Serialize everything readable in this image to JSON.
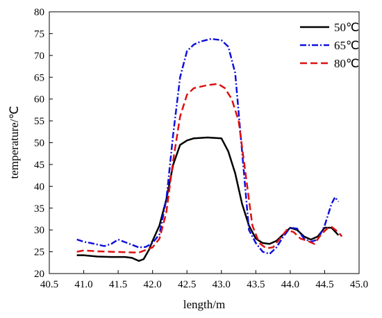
{
  "chart_data": {
    "type": "line",
    "xlabel": "length/m",
    "ylabel": "temperature/℃",
    "xlim": [
      40.5,
      45.0
    ],
    "ylim": [
      20,
      80
    ],
    "xticks": [
      "40.5",
      "41.0",
      "41.5",
      "42.0",
      "42.5",
      "43.0",
      "43.5",
      "44.0",
      "44.5",
      "45.0"
    ],
    "yticks": [
      "20",
      "25",
      "30",
      "35",
      "40",
      "45",
      "50",
      "55",
      "60",
      "65",
      "70",
      "75",
      "80"
    ],
    "legend_position": "top-right",
    "grid": false,
    "series": [
      {
        "name": "50℃",
        "color": "#000000",
        "dash": "solid",
        "points": [
          [
            40.9,
            24.2
          ],
          [
            41.0,
            24.2
          ],
          [
            41.2,
            23.9
          ],
          [
            41.4,
            23.8
          ],
          [
            41.6,
            23.8
          ],
          [
            41.7,
            23.6
          ],
          [
            41.8,
            22.9
          ],
          [
            41.87,
            23.3
          ],
          [
            41.95,
            25.5
          ],
          [
            42.0,
            27.5
          ],
          [
            42.1,
            31.0
          ],
          [
            42.2,
            37.0
          ],
          [
            42.3,
            45.0
          ],
          [
            42.4,
            49.5
          ],
          [
            42.5,
            50.5
          ],
          [
            42.6,
            51.0
          ],
          [
            42.8,
            51.2
          ],
          [
            43.0,
            51.0
          ],
          [
            43.1,
            48.0
          ],
          [
            43.2,
            43.0
          ],
          [
            43.3,
            36.0
          ],
          [
            43.4,
            31.0
          ],
          [
            43.5,
            28.0
          ],
          [
            43.6,
            27.0
          ],
          [
            43.7,
            26.8
          ],
          [
            43.8,
            27.5
          ],
          [
            43.9,
            29.0
          ],
          [
            44.0,
            30.5
          ],
          [
            44.1,
            30.0
          ],
          [
            44.2,
            28.5
          ],
          [
            44.3,
            27.8
          ],
          [
            44.4,
            28.5
          ],
          [
            44.5,
            30.5
          ],
          [
            44.6,
            30.5
          ],
          [
            44.7,
            28.8
          ]
        ]
      },
      {
        "name": "65℃",
        "color": "#1010dd",
        "dash": "dashdot",
        "points": [
          [
            40.9,
            27.8
          ],
          [
            41.0,
            27.3
          ],
          [
            41.1,
            27.0
          ],
          [
            41.3,
            26.3
          ],
          [
            41.4,
            26.8
          ],
          [
            41.5,
            27.8
          ],
          [
            41.6,
            27.2
          ],
          [
            41.7,
            26.6
          ],
          [
            41.8,
            26.0
          ],
          [
            41.9,
            26.1
          ],
          [
            42.0,
            27.0
          ],
          [
            42.1,
            29.0
          ],
          [
            42.2,
            37.0
          ],
          [
            42.3,
            52.0
          ],
          [
            42.4,
            65.0
          ],
          [
            42.5,
            71.0
          ],
          [
            42.6,
            72.5
          ],
          [
            42.7,
            73.2
          ],
          [
            42.85,
            73.8
          ],
          [
            43.0,
            73.5
          ],
          [
            43.1,
            72.0
          ],
          [
            43.2,
            66.0
          ],
          [
            43.3,
            48.0
          ],
          [
            43.4,
            30.0
          ],
          [
            43.5,
            27.0
          ],
          [
            43.6,
            25.0
          ],
          [
            43.7,
            24.5
          ],
          [
            43.8,
            26.0
          ],
          [
            43.9,
            28.5
          ],
          [
            44.0,
            30.5
          ],
          [
            44.1,
            30.3
          ],
          [
            44.2,
            28.0
          ],
          [
            44.3,
            27.3
          ],
          [
            44.4,
            27.8
          ],
          [
            44.5,
            31.0
          ],
          [
            44.6,
            36.0
          ],
          [
            44.65,
            37.5
          ],
          [
            44.7,
            36.5
          ]
        ]
      },
      {
        "name": "80℃",
        "color": "#dd1010",
        "dash": "dashed",
        "points": [
          [
            40.9,
            25.0
          ],
          [
            41.0,
            25.3
          ],
          [
            41.2,
            25.1
          ],
          [
            41.4,
            25.0
          ],
          [
            41.6,
            24.9
          ],
          [
            41.8,
            24.8
          ],
          [
            42.0,
            26.0
          ],
          [
            42.1,
            28.0
          ],
          [
            42.2,
            34.0
          ],
          [
            42.3,
            46.0
          ],
          [
            42.4,
            56.0
          ],
          [
            42.5,
            61.0
          ],
          [
            42.6,
            62.5
          ],
          [
            42.8,
            63.2
          ],
          [
            42.95,
            63.5
          ],
          [
            43.05,
            62.5
          ],
          [
            43.15,
            60.0
          ],
          [
            43.25,
            55.0
          ],
          [
            43.35,
            43.0
          ],
          [
            43.45,
            31.0
          ],
          [
            43.55,
            27.0
          ],
          [
            43.65,
            25.8
          ],
          [
            43.75,
            26.0
          ],
          [
            43.85,
            28.0
          ],
          [
            43.95,
            30.0
          ],
          [
            44.05,
            29.5
          ],
          [
            44.15,
            28.0
          ],
          [
            44.25,
            27.5
          ],
          [
            44.35,
            26.8
          ],
          [
            44.45,
            29.0
          ],
          [
            44.55,
            30.5
          ],
          [
            44.6,
            30.7
          ],
          [
            44.7,
            29.5
          ],
          [
            44.75,
            28.5
          ]
        ]
      }
    ]
  }
}
